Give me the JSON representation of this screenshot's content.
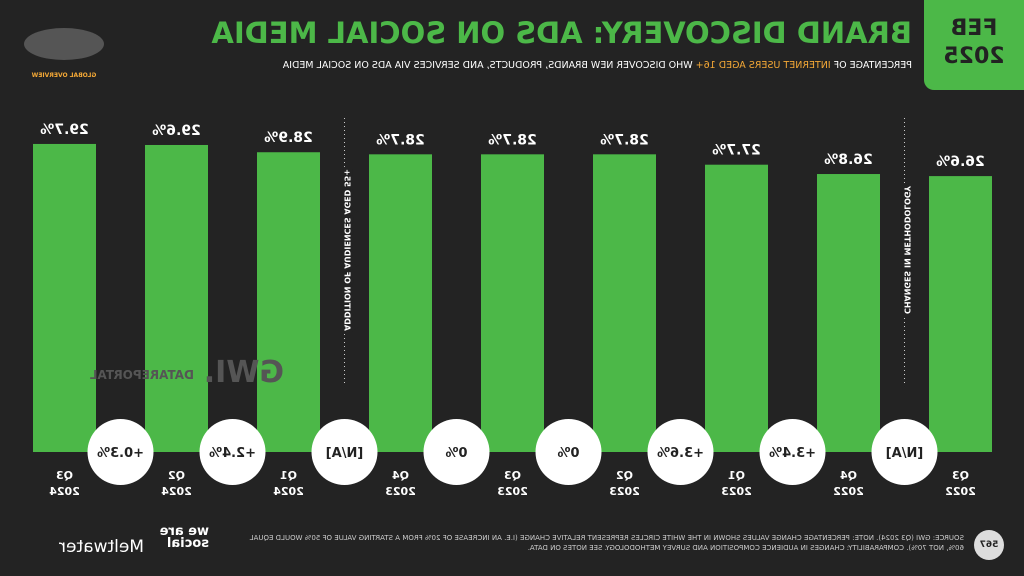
{
  "header": {
    "month": "FEB",
    "year": "2025",
    "title": "BRAND DISCOVERY: ADS ON SOCIAL MEDIA",
    "subtitle": [
      "PERCENTAGE OF ",
      "INTERNET USERS AGED 16+",
      " WHO DISCOVER NEW BRANDS, PRODUCTS, AND SERVICES VIA ADS ON SOCIAL MEDIA"
    ],
    "section": "GLOBAL OVERVIEW"
  },
  "chart_data": {
    "type": "bar",
    "color": "#4cb848",
    "categories": [
      "Q3 2022",
      "Q4 2022",
      "Q1 2023",
      "Q2 2023",
      "Q3 2023",
      "Q4 2023",
      "Q1 2024",
      "Q2 2024",
      "Q3 2024"
    ],
    "values": [
      26.6,
      26.8,
      27.7,
      28.7,
      28.7,
      28.7,
      28.9,
      29.6,
      29.7
    ],
    "value_labels": [
      "26.6%",
      "26.8%",
      "27.7%",
      "28.7%",
      "28.7%",
      "28.7%",
      "28.9%",
      "29.6%",
      "29.7%"
    ],
    "ylim": [
      0,
      43
    ],
    "change_labels": [
      "[N/A]",
      "+3.4%",
      "+3.6%",
      "0%",
      "0%",
      "[N/A]",
      "+2.4%",
      "+0.3%"
    ],
    "annotations": [
      {
        "after": 0,
        "text": "CHANGES IN METHODOLOGY"
      },
      {
        "after": 5,
        "text": "ADDITION OF AUDIENCES AGED 55+"
      }
    ]
  },
  "watermarks": [
    "GWI.",
    "DATAREPORTAL"
  ],
  "footer": {
    "source": "SOURCE: GWI (Q3 2024). NOTE: PERCENTAGE CHANGE VALUES SHOWN IN THE WHITE CIRCLES REPRESENT RELATIVE CHANGE (I.E. AN INCREASE OF 20% FROM A STARTING VALUE OF 50% WOULD EQUAL 60%, NOT 70%). COMPARABILITY: CHANGES IN AUDIENCE COMPOSITION AND SURVEY METHODOLOGY. SEE NOTES ON DATA.",
    "page": "567",
    "logos": [
      "we are social",
      "Meltwater"
    ]
  }
}
